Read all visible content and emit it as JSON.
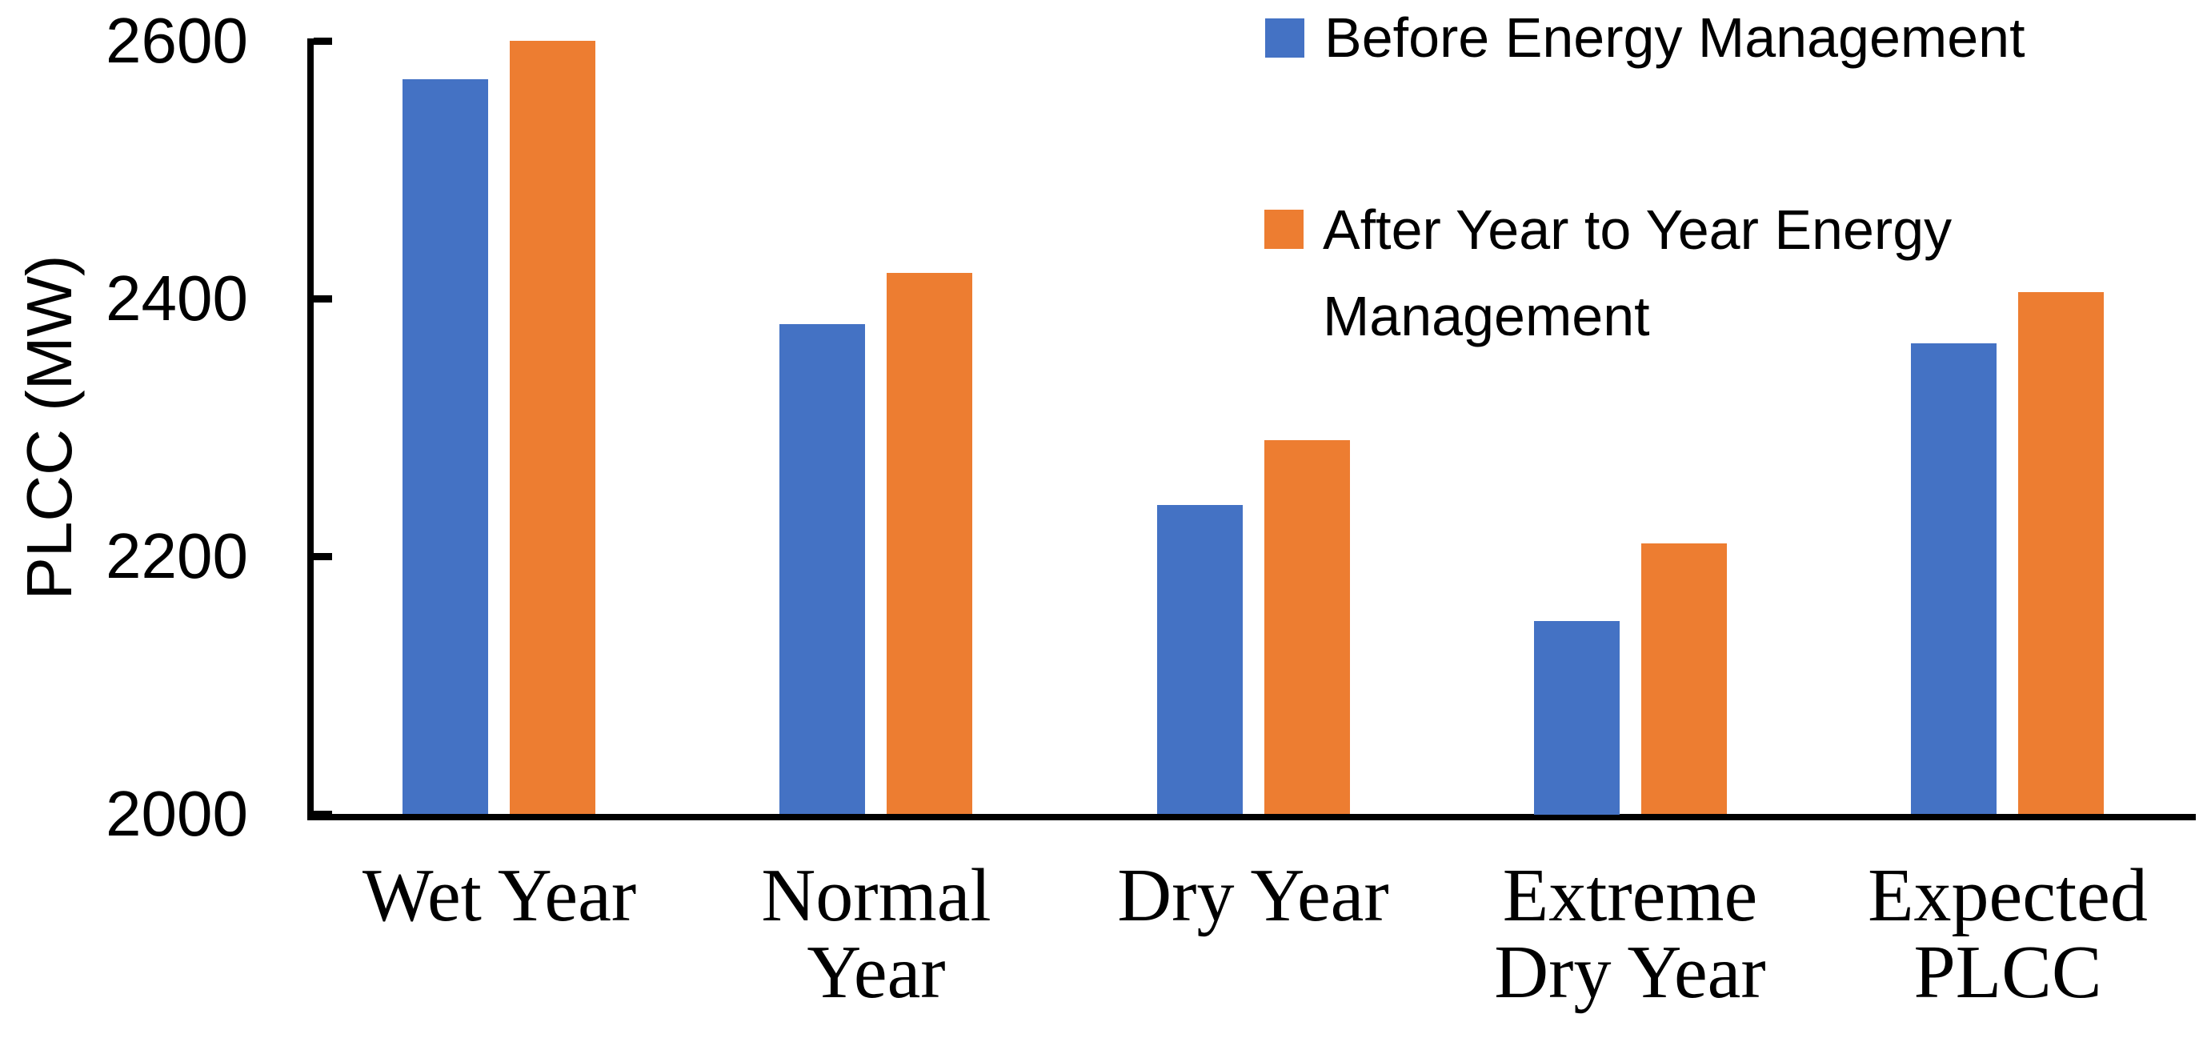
{
  "chart_data": {
    "type": "bar",
    "title": "",
    "xlabel": "",
    "ylabel": "PLCC (MW)",
    "ylim": [
      2000,
      2600
    ],
    "yticks": [
      2000,
      2200,
      2400,
      2600
    ],
    "grid": false,
    "legend_position": "top-right",
    "categories": [
      "Wet Year",
      "Normal Year",
      "Dry Year",
      "Extreme Dry Year",
      "Expected PLCC"
    ],
    "categories_display": [
      "Wet Year",
      "Normal\nYear",
      "Dry Year",
      "Extreme\nDry Year",
      "Expected\nPLCC"
    ],
    "series": [
      {
        "name": "Before Energy Management",
        "color": "#4472C4",
        "values": [
          2570,
          2380,
          2240,
          2150,
          2365
        ]
      },
      {
        "name": "After Year to Year Energy Management",
        "color": "#ED7D31",
        "values": [
          2600,
          2420,
          2290,
          2210,
          2405
        ]
      }
    ]
  },
  "colors": {
    "axis": "#000000",
    "text": "#000000",
    "background": "#FFFFFF"
  }
}
